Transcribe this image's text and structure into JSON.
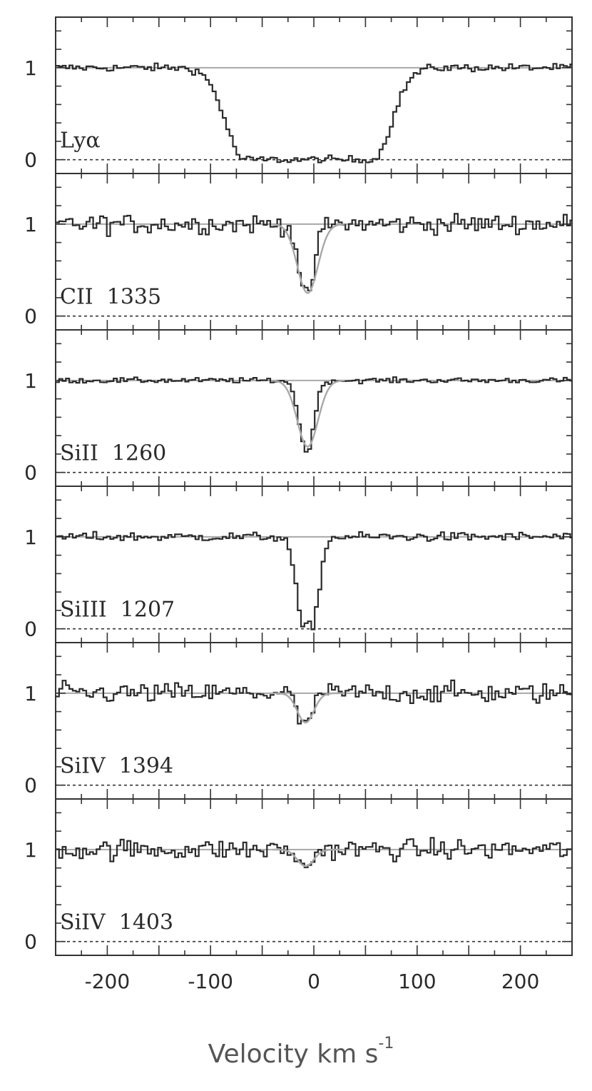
{
  "chart_data": {
    "type": "line",
    "subtype": "stacked absorption-line velocity panels",
    "xlabel": "Velocity km s",
    "xlabel_superscript": "-1",
    "xlim": [
      -250,
      250
    ],
    "x_ticks": [
      -200,
      -100,
      0,
      100,
      200
    ],
    "y_ticks": [
      0,
      1
    ],
    "ylim": [
      -0.15,
      1.55
    ],
    "continuum_level": 1,
    "zero_level": 0,
    "colors": {
      "data": "#2a2a2a",
      "model": "#a8a8a8",
      "frame": "#333333"
    },
    "panels": [
      {
        "label": "Lyα",
        "absorption": [
          {
            "center": -5,
            "halfwidth": 62,
            "depth": 1.0,
            "edge": 18
          }
        ],
        "noise": 0.03,
        "has_model": false,
        "model": []
      },
      {
        "label": "CII  1335",
        "absorption": [
          {
            "center": -7,
            "halfwidth": 0,
            "depth": 0.82,
            "width": 7
          }
        ],
        "noise": 0.075,
        "has_model": true,
        "model": [
          {
            "center": -6,
            "depth": 0.75,
            "width": 10
          }
        ]
      },
      {
        "label": "SiII  1260",
        "absorption": [
          {
            "center": -7,
            "halfwidth": 0,
            "depth": 0.78,
            "width": 7
          }
        ],
        "noise": 0.02,
        "has_model": true,
        "model": [
          {
            "center": -6,
            "depth": 0.72,
            "width": 10
          }
        ]
      },
      {
        "label": "SiIII  1207",
        "absorption": [
          {
            "center": -6,
            "halfwidth": 4,
            "depth": 0.97,
            "width": 7
          }
        ],
        "noise": 0.035,
        "has_model": false,
        "model": []
      },
      {
        "label": "SiIV  1394",
        "absorption": [
          {
            "center": -9,
            "halfwidth": 0,
            "depth": 0.4,
            "width": 6
          }
        ],
        "noise": 0.08,
        "has_model": true,
        "model": [
          {
            "center": -8,
            "depth": 0.32,
            "width": 8
          }
        ]
      },
      {
        "label": "SiIV  1403",
        "absorption": [
          {
            "center": -9,
            "halfwidth": 0,
            "depth": 0.22,
            "width": 6
          }
        ],
        "noise": 0.08,
        "has_model": true,
        "model": [
          {
            "center": -8,
            "depth": 0.18,
            "width": 8
          }
        ]
      }
    ]
  }
}
